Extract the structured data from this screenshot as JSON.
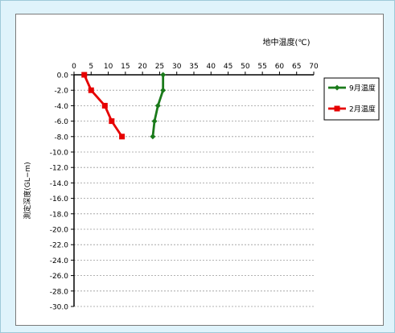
{
  "chart_data": {
    "type": "line",
    "x_axis_title": "地中温度(℃)",
    "y_axis_title": "測定深度(GL−m)",
    "x_ticks": [
      0,
      5,
      10,
      15,
      20,
      25,
      30,
      35,
      40,
      45,
      50,
      55,
      60,
      65,
      70
    ],
    "y_ticks": [
      "0.0",
      "-2.0",
      "-4.0",
      "-6.0",
      "-8.0",
      "-10.0",
      "-12.0",
      "-14.0",
      "-16.0",
      "-18.0",
      "-20.0",
      "-22.0",
      "-24.0",
      "-26.0",
      "-28.0",
      "-30.0"
    ],
    "xlim": [
      0,
      70
    ],
    "ylim": [
      -30,
      0
    ],
    "grid": "horizontal",
    "legend_position": "right",
    "x_axis_position": "top",
    "series": [
      {
        "name": "9月温度",
        "color": "#1a7a1a",
        "marker": "diamond",
        "points": [
          {
            "x": 26,
            "y": 0
          },
          {
            "x": 26,
            "y": -2
          },
          {
            "x": 24.5,
            "y": -4
          },
          {
            "x": 23.5,
            "y": -6
          },
          {
            "x": 23,
            "y": -8
          }
        ]
      },
      {
        "name": "2月温度",
        "color": "#e60000",
        "marker": "square",
        "points": [
          {
            "x": 3,
            "y": 0
          },
          {
            "x": 5,
            "y": -2
          },
          {
            "x": 9,
            "y": -4
          },
          {
            "x": 11,
            "y": -6
          },
          {
            "x": 14,
            "y": -8
          }
        ]
      }
    ]
  }
}
